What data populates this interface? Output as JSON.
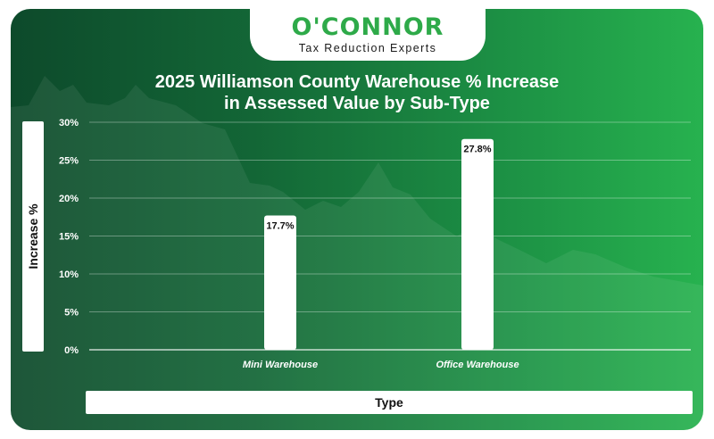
{
  "brand": {
    "name": "O'CONNOR",
    "tagline": "Tax Reduction Experts"
  },
  "colors": {
    "accent": "#2eaa49",
    "bar": "#ffffff",
    "grid": "#ffffff",
    "text": "#ffffff"
  },
  "chart_data": {
    "type": "bar",
    "title_line1": "2025 Williamson County Warehouse % Increase",
    "title_line2": "in Assessed Value by Sub-Type",
    "xlabel": "Type",
    "ylabel": "Increase %",
    "categories": [
      "Mini Warehouse",
      "Office Warehouse"
    ],
    "values": [
      17.7,
      27.8
    ],
    "value_labels": [
      "17.7%",
      "27.8%"
    ],
    "ylim": [
      0,
      30
    ],
    "yticks": [
      {
        "value": 0,
        "label": "0%"
      },
      {
        "value": 5,
        "label": "5%"
      },
      {
        "value": 10,
        "label": "10%"
      },
      {
        "value": 15,
        "label": "15%"
      },
      {
        "value": 20,
        "label": "20%"
      },
      {
        "value": 25,
        "label": "25%"
      },
      {
        "value": 30,
        "label": "30%"
      }
    ],
    "grid": true,
    "legend": "none"
  }
}
